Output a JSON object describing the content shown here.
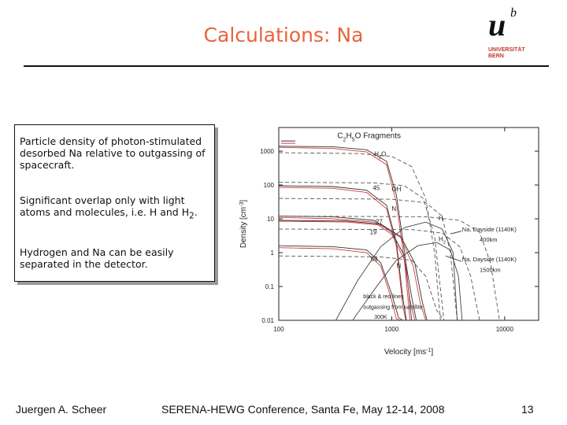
{
  "slide": {
    "title": "Calculations: Na",
    "logo": {
      "mark": "u",
      "mark_sup": "b",
      "line1": "UNIVERSITÄT",
      "line2": "BERN"
    },
    "text_paragraphs": [
      "Particle density of photon-stimulated desorbed Na relative to outgassing of spacecraft.",
      "Significant overlap only with light atoms and molecules, i.e. H and H",
      "Hydrogen and Na can be easily separated in the detector."
    ],
    "h2_sub": "2",
    "h2_suffix": ".",
    "footer_left": "Juergen A. Scheer",
    "footer_center": "SERENA-HEWG Conference, Santa Fe, May 12-14, 2008",
    "page_number": "13"
  },
  "chart_data": {
    "type": "line",
    "xscale": "log",
    "yscale": "log",
    "xlim": [
      100,
      20000
    ],
    "ylim": [
      0.01,
      5000
    ],
    "x_ticks": [
      100,
      1000,
      10000
    ],
    "x_tick_labels": [
      "100",
      "1000",
      "10000"
    ],
    "y_ticks": [
      0.01,
      0.1,
      1,
      10,
      100,
      1000
    ],
    "y_tick_labels": [
      "0.01",
      "0.1",
      "1",
      "10",
      "100",
      "1000"
    ],
    "xlabel": "Velocity [ms",
    "xlabel_sup": "-1",
    "xlabel_end": "]",
    "ylabel": "Density [cm",
    "ylabel_sup": "-3",
    "ylabel_end": "]",
    "grid": false,
    "legend_title_parts": [
      "C",
      "2",
      "H",
      "5",
      "O Fragments"
    ],
    "annotations": {
      "h2o": "H",
      "h2o_sub": "2",
      "h2o_end": "O",
      "oh": "OH",
      "n1": "N",
      "h": "H",
      "h2": "H",
      "h2_sub": "2",
      "n2": "N",
      "l45": "45",
      "l27": "27",
      "l19": "19",
      "l59": "59",
      "na1": "Na, Dayside (1140K)",
      "na1b": "400km",
      "na2": "Na, Dayside (1140K)",
      "na2b": "1500km",
      "note1": "black & red lines",
      "note2": "outgassing from satellite",
      "note3": "300K"
    },
    "series": [
      {
        "name": "C2H5O fragments (black 1)",
        "color": "#333333",
        "dash": "",
        "x": [
          100,
          300,
          600,
          900,
          1100,
          1300,
          1500
        ],
        "y": [
          1400,
          1350,
          1100,
          500,
          50,
          1,
          0.01
        ]
      },
      {
        "name": "C2H5O fragments (red 1)",
        "color": "#d23c3c",
        "dash": "",
        "x": [
          100,
          300,
          600,
          900,
          1100,
          1300,
          1450
        ],
        "y": [
          1300,
          1200,
          950,
          400,
          30,
          0.5,
          0.01
        ]
      },
      {
        "name": "H2O",
        "color": "#555555",
        "dash": "5,3",
        "x": [
          100,
          500,
          1000,
          1500,
          2000,
          2400,
          2700
        ],
        "y": [
          900,
          850,
          700,
          350,
          40,
          1,
          0.01
        ]
      },
      {
        "name": "45",
        "color": "#333333",
        "dash": "",
        "x": [
          100,
          300,
          600,
          900,
          1100,
          1250,
          1350
        ],
        "y": [
          95,
          90,
          70,
          25,
          2,
          0.05,
          0.01
        ]
      },
      {
        "name": "45 red",
        "color": "#d23c3c",
        "dash": "",
        "x": [
          100,
          300,
          600,
          900,
          1100,
          1250,
          1330
        ],
        "y": [
          85,
          80,
          60,
          20,
          1.5,
          0.03,
          0.01
        ]
      },
      {
        "name": "OH",
        "color": "#555555",
        "dash": "5,3",
        "x": [
          100,
          700,
          1300,
          1900,
          2400,
          2900
        ],
        "y": [
          120,
          115,
          95,
          40,
          3,
          0.01
        ]
      },
      {
        "name": "N",
        "color": "#555555",
        "dash": "5,3",
        "x": [
          100,
          1000,
          2000,
          2800,
          3300,
          3800
        ],
        "y": [
          40,
          38,
          30,
          12,
          1,
          0.01
        ]
      },
      {
        "name": "27",
        "color": "#333333",
        "dash": "",
        "x": [
          100,
          300,
          700,
          1000,
          1300,
          1500,
          1650
        ],
        "y": [
          12,
          11.5,
          9,
          4,
          0.8,
          0.05,
          0.01
        ]
      },
      {
        "name": "27 red",
        "color": "#d23c3c",
        "dash": "",
        "x": [
          100,
          300,
          700,
          1000,
          1300,
          1450,
          1600
        ],
        "y": [
          11,
          10,
          8,
          3.5,
          0.6,
          0.04,
          0.01
        ]
      },
      {
        "name": "19",
        "color": "#333333",
        "dash": "",
        "x": [
          100,
          400,
          800,
          1200,
          1600,
          1850,
          2050
        ],
        "y": [
          9,
          8.6,
          7,
          3,
          0.5,
          0.04,
          0.01
        ]
      },
      {
        "name": "19 red",
        "color": "#d23c3c",
        "dash": "",
        "x": [
          100,
          400,
          800,
          1200,
          1550,
          1800,
          2000
        ],
        "y": [
          8.5,
          8.1,
          6.5,
          2.8,
          0.4,
          0.03,
          0.01
        ]
      },
      {
        "name": "H",
        "color": "#555555",
        "dash": "5,3",
        "x": [
          100,
          2000,
          4000,
          6000,
          7500,
          9000
        ],
        "y": [
          12,
          11.5,
          9,
          4,
          0.5,
          0.01
        ]
      },
      {
        "name": "H2",
        "color": "#555555",
        "dash": "5,3",
        "x": [
          100,
          1500,
          2800,
          4000,
          5000,
          6000
        ],
        "y": [
          5,
          4.8,
          3.8,
          1.5,
          0.2,
          0.01
        ]
      },
      {
        "name": "59",
        "color": "#333333",
        "dash": "",
        "x": [
          100,
          300,
          600,
          800,
          1000,
          1150,
          1250
        ],
        "y": [
          1.6,
          1.5,
          1.2,
          0.5,
          0.06,
          0.012,
          0.01
        ]
      },
      {
        "name": "59 red",
        "color": "#d23c3c",
        "dash": "",
        "x": [
          100,
          300,
          600,
          800,
          980,
          1100,
          1200
        ],
        "y": [
          1.4,
          1.3,
          1,
          0.4,
          0.05,
          0.011,
          0.01
        ]
      },
      {
        "name": "N (2)",
        "color": "#555555",
        "dash": "5,3",
        "x": [
          100,
          800,
          1500,
          2000,
          2500,
          2900
        ],
        "y": [
          0.8,
          0.75,
          0.6,
          0.2,
          0.02,
          0.01
        ]
      },
      {
        "name": "Na, Dayside (1140K) 400km",
        "color": "#444444",
        "dash": "",
        "x": [
          320,
          500,
          800,
          1300,
          2000,
          2800,
          3500,
          3800
        ],
        "y": [
          0.01,
          0.15,
          1.5,
          5.5,
          8,
          5,
          1,
          0.01
        ]
      },
      {
        "name": "Na, Dayside (1140K) 1500km",
        "color": "#444444",
        "dash": "",
        "x": [
          450,
          700,
          1100,
          1700,
          2500,
          3300,
          3900,
          4200
        ],
        "y": [
          0.01,
          0.08,
          0.6,
          1.6,
          2,
          1.2,
          0.2,
          0.01
        ]
      }
    ]
  }
}
